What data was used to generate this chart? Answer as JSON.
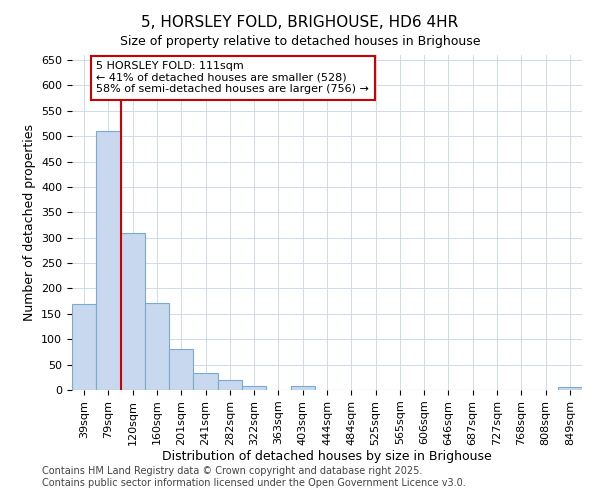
{
  "title": "5, HORSLEY FOLD, BRIGHOUSE, HD6 4HR",
  "subtitle": "Size of property relative to detached houses in Brighouse",
  "xlabel": "Distribution of detached houses by size in Brighouse",
  "ylabel": "Number of detached properties",
  "categories": [
    "39sqm",
    "79sqm",
    "120sqm",
    "160sqm",
    "201sqm",
    "241sqm",
    "282sqm",
    "322sqm",
    "363sqm",
    "403sqm",
    "444sqm",
    "484sqm",
    "525sqm",
    "565sqm",
    "606sqm",
    "646sqm",
    "687sqm",
    "727sqm",
    "768sqm",
    "808sqm",
    "849sqm"
  ],
  "values": [
    170,
    510,
    310,
    172,
    80,
    34,
    20,
    8,
    0,
    8,
    0,
    0,
    0,
    0,
    0,
    0,
    0,
    0,
    0,
    0,
    5
  ],
  "bar_color": "#c8d8ee",
  "bar_edge_color": "#7aaad0",
  "vline_color": "#cc0000",
  "vline_x": 1.5,
  "annotation_text": "5 HORSLEY FOLD: 111sqm\n← 41% of detached houses are smaller (528)\n58% of semi-detached houses are larger (756) →",
  "annotation_box_facecolor": "#ffffff",
  "annotation_box_edgecolor": "#cc0000",
  "ylim": [
    0,
    660
  ],
  "yticks": [
    0,
    50,
    100,
    150,
    200,
    250,
    300,
    350,
    400,
    450,
    500,
    550,
    600,
    650
  ],
  "footer_line1": "Contains HM Land Registry data © Crown copyright and database right 2025.",
  "footer_line2": "Contains public sector information licensed under the Open Government Licence v3.0.",
  "fig_facecolor": "#ffffff",
  "grid_color": "#c8d4e8",
  "title_fontsize": 11,
  "subtitle_fontsize": 9,
  "axis_label_fontsize": 9,
  "tick_fontsize": 8,
  "annotation_fontsize": 8,
  "footer_fontsize": 7
}
